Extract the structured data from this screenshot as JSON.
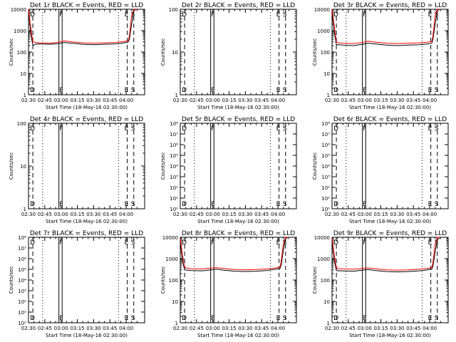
{
  "figure": {
    "shared": {
      "xlabel": "Start Time (18-May-16 02:30:00)",
      "ylabel": "Counts/sec",
      "x_ticks": [
        "02:30",
        "02:45",
        "03:00",
        "03:15",
        "03:30",
        "03:45",
        "04:00"
      ],
      "x_range_minutes": [
        0,
        107
      ],
      "event_color": "#000000",
      "lld_color": "#ff0000"
    }
  },
  "chart_data": [
    {
      "type": "line",
      "title": "Det 1r BLACK = Events, RED = LLD",
      "yscale": "log",
      "ylim": [
        1,
        10000
      ],
      "ytick_labels": [
        "1",
        "10",
        "100",
        "1000",
        "10000"
      ],
      "markers": [
        {
          "minute": 4,
          "style": "dashed",
          "label": "D"
        },
        {
          "minute": 13,
          "style": "dotted",
          "label": ""
        },
        {
          "minute": 28,
          "style": "solid",
          "label": ""
        },
        {
          "minute": 31,
          "style": "solid",
          "label": "F"
        },
        {
          "minute": 83,
          "style": "dotted",
          "label": ""
        },
        {
          "minute": 91,
          "style": "dashed",
          "label": "E"
        },
        {
          "minute": 97,
          "style": "dashed",
          "label": "S"
        }
      ],
      "series": [
        {
          "name": "BLACK = Events",
          "x": [
            0,
            2,
            4,
            6,
            10,
            20,
            28,
            33,
            40,
            50,
            60,
            70,
            80,
            88,
            92,
            93,
            95,
            97,
            100
          ],
          "y": [
            9000,
            800,
            200,
            230,
            240,
            230,
            250,
            280,
            260,
            230,
            220,
            230,
            240,
            270,
            300,
            400,
            2000,
            9000,
            10000
          ]
        },
        {
          "name": "RED = LLD",
          "x": [
            0,
            2,
            4,
            6,
            10,
            20,
            28,
            33,
            40,
            50,
            60,
            70,
            80,
            88,
            92,
            93,
            95,
            97,
            100
          ],
          "y": [
            10000,
            1500,
            300,
            280,
            270,
            260,
            290,
            330,
            300,
            270,
            260,
            270,
            280,
            310,
            340,
            600,
            5000,
            10000,
            10000
          ]
        }
      ]
    },
    {
      "type": "line",
      "title": "Det 2r BLACK = Events, RED = LLD",
      "yscale": "log",
      "ylim": [
        1,
        100
      ],
      "ytick_labels": [
        "1",
        "10",
        "100"
      ],
      "markers": [
        {
          "minute": 4,
          "style": "dashed",
          "label": "D"
        },
        {
          "minute": 13,
          "style": "dotted",
          "label": ""
        },
        {
          "minute": 28,
          "style": "solid",
          "label": ""
        },
        {
          "minute": 31,
          "style": "solid",
          "label": "F"
        },
        {
          "minute": 83,
          "style": "dotted",
          "label": ""
        },
        {
          "minute": 91,
          "style": "dashed",
          "label": "E"
        },
        {
          "minute": 97,
          "style": "dashed",
          "label": "S"
        }
      ],
      "series": []
    },
    {
      "type": "line",
      "title": "Det 3r BLACK = Events, RED = LLD",
      "yscale": "log",
      "ylim": [
        1,
        10000
      ],
      "ytick_labels": [
        "1",
        "10",
        "100",
        "1000",
        "10000"
      ],
      "markers": [
        {
          "minute": 4,
          "style": "dashed",
          "label": "D"
        },
        {
          "minute": 13,
          "style": "dotted",
          "label": ""
        },
        {
          "minute": 28,
          "style": "solid",
          "label": ""
        },
        {
          "minute": 31,
          "style": "solid",
          "label": "F"
        },
        {
          "minute": 83,
          "style": "dotted",
          "label": ""
        },
        {
          "minute": 91,
          "style": "dashed",
          "label": "E"
        },
        {
          "minute": 97,
          "style": "dashed",
          "label": "S"
        }
      ],
      "series": [
        {
          "name": "BLACK = Events",
          "x": [
            0,
            2,
            4,
            6,
            10,
            20,
            28,
            33,
            40,
            50,
            60,
            70,
            80,
            88,
            92,
            93,
            95,
            97,
            100
          ],
          "y": [
            8000,
            900,
            220,
            220,
            210,
            200,
            230,
            260,
            240,
            210,
            200,
            210,
            220,
            240,
            260,
            400,
            2000,
            9000,
            10000
          ]
        },
        {
          "name": "RED = LLD",
          "x": [
            0,
            2,
            4,
            6,
            10,
            20,
            28,
            33,
            40,
            50,
            60,
            70,
            80,
            88,
            92,
            93,
            95,
            97,
            100
          ],
          "y": [
            10000,
            1800,
            300,
            270,
            260,
            250,
            280,
            320,
            290,
            260,
            250,
            260,
            270,
            290,
            310,
            600,
            5000,
            10000,
            10000
          ]
        }
      ]
    },
    {
      "type": "line",
      "title": "Det 4r BLACK = Events, RED = LLD",
      "yscale": "log",
      "ylim": [
        1,
        100
      ],
      "ytick_labels": [
        "1",
        "10",
        "100"
      ],
      "markers": [
        {
          "minute": 4,
          "style": "dashed",
          "label": "D"
        },
        {
          "minute": 13,
          "style": "dotted",
          "label": ""
        },
        {
          "minute": 28,
          "style": "solid",
          "label": ""
        },
        {
          "minute": 31,
          "style": "solid",
          "label": "F"
        },
        {
          "minute": 83,
          "style": "dotted",
          "label": ""
        },
        {
          "minute": 91,
          "style": "dashed",
          "label": "E"
        },
        {
          "minute": 97,
          "style": "dashed",
          "label": "S"
        }
      ],
      "series": []
    },
    {
      "type": "line",
      "title": "Det 5r BLACK = Events, RED = LLD",
      "yscale": "log",
      "ylim": [
        1,
        100000000
      ],
      "ytick_labels": [
        "10⁰",
        "10¹",
        "10²",
        "10³",
        "10⁴",
        "10⁵",
        "10⁶",
        "10⁷",
        "10⁸"
      ],
      "markers": [
        {
          "minute": 4,
          "style": "dashed",
          "label": "D"
        },
        {
          "minute": 13,
          "style": "dotted",
          "label": ""
        },
        {
          "minute": 28,
          "style": "solid",
          "label": ""
        },
        {
          "minute": 31,
          "style": "solid",
          "label": "F"
        },
        {
          "minute": 83,
          "style": "dotted",
          "label": ""
        },
        {
          "minute": 91,
          "style": "dashed",
          "label": "E"
        },
        {
          "minute": 97,
          "style": "dashed",
          "label": "S"
        }
      ],
      "series": []
    },
    {
      "type": "line",
      "title": "Det 6r BLACK = Events, RED = LLD",
      "yscale": "log",
      "ylim": [
        1,
        100000000
      ],
      "ytick_labels": [
        "10⁰",
        "10¹",
        "10²",
        "10³",
        "10⁴",
        "10⁵",
        "10⁶",
        "10⁷",
        "10⁸"
      ],
      "markers": [
        {
          "minute": 4,
          "style": "dashed",
          "label": "D"
        },
        {
          "minute": 13,
          "style": "dotted",
          "label": ""
        },
        {
          "minute": 28,
          "style": "solid",
          "label": ""
        },
        {
          "minute": 31,
          "style": "solid",
          "label": "F"
        },
        {
          "minute": 83,
          "style": "dotted",
          "label": ""
        },
        {
          "minute": 91,
          "style": "dashed",
          "label": "E"
        },
        {
          "minute": 97,
          "style": "dashed",
          "label": "S"
        }
      ],
      "series": []
    },
    {
      "type": "line",
      "title": "Det 7r BLACK = Events, RED = LLD",
      "yscale": "log",
      "ylim": [
        1,
        100000000
      ],
      "ytick_labels": [
        "10⁰",
        "10¹",
        "10²",
        "10³",
        "10⁴",
        "10⁵",
        "10⁶",
        "10⁷",
        "10⁸"
      ],
      "markers": [
        {
          "minute": 4,
          "style": "dashed",
          "label": "D"
        },
        {
          "minute": 13,
          "style": "dotted",
          "label": ""
        },
        {
          "minute": 28,
          "style": "solid",
          "label": ""
        },
        {
          "minute": 31,
          "style": "solid",
          "label": "F"
        },
        {
          "minute": 83,
          "style": "dotted",
          "label": ""
        },
        {
          "minute": 91,
          "style": "dashed",
          "label": "E"
        },
        {
          "minute": 97,
          "style": "dashed",
          "label": "S"
        }
      ],
      "series": []
    },
    {
      "type": "line",
      "title": "Det 8r BLACK = Events, RED = LLD",
      "yscale": "log",
      "ylim": [
        1,
        10000
      ],
      "ytick_labels": [
        "1",
        "10",
        "100",
        "1000",
        "10000"
      ],
      "markers": [
        {
          "minute": 4,
          "style": "dashed",
          "label": "D"
        },
        {
          "minute": 13,
          "style": "dotted",
          "label": ""
        },
        {
          "minute": 28,
          "style": "solid",
          "label": ""
        },
        {
          "minute": 31,
          "style": "solid",
          "label": "F"
        },
        {
          "minute": 83,
          "style": "dotted",
          "label": ""
        },
        {
          "minute": 91,
          "style": "dashed",
          "label": "E"
        },
        {
          "minute": 97,
          "style": "dashed",
          "label": "S"
        }
      ],
      "series": [
        {
          "name": "BLACK = Events",
          "x": [
            0,
            2,
            4,
            6,
            10,
            20,
            28,
            33,
            40,
            50,
            60,
            70,
            80,
            88,
            92,
            93,
            95,
            97,
            100
          ],
          "y": [
            7000,
            800,
            300,
            290,
            280,
            270,
            300,
            320,
            290,
            260,
            250,
            260,
            280,
            320,
            350,
            500,
            2500,
            9000,
            10000
          ]
        },
        {
          "name": "RED = LLD",
          "x": [
            0,
            2,
            4,
            6,
            10,
            20,
            28,
            33,
            40,
            50,
            60,
            70,
            80,
            88,
            92,
            93,
            95,
            97,
            100
          ],
          "y": [
            9000,
            1500,
            400,
            360,
            340,
            330,
            360,
            380,
            350,
            310,
            300,
            310,
            330,
            370,
            400,
            800,
            5000,
            10000,
            10000
          ]
        }
      ]
    },
    {
      "type": "line",
      "title": "Det 9r BLACK = Events, RED = LLD",
      "yscale": "log",
      "ylim": [
        1,
        10000
      ],
      "ytick_labels": [
        "1",
        "10",
        "100",
        "1000",
        "10000"
      ],
      "markers": [
        {
          "minute": 4,
          "style": "dashed",
          "label": "D"
        },
        {
          "minute": 13,
          "style": "dotted",
          "label": ""
        },
        {
          "minute": 28,
          "style": "solid",
          "label": ""
        },
        {
          "minute": 31,
          "style": "solid",
          "label": "F"
        },
        {
          "minute": 83,
          "style": "dotted",
          "label": ""
        },
        {
          "minute": 91,
          "style": "dashed",
          "label": "E"
        },
        {
          "minute": 97,
          "style": "dashed",
          "label": "S"
        }
      ],
      "series": [
        {
          "name": "BLACK = Events",
          "x": [
            0,
            2,
            4,
            6,
            10,
            20,
            28,
            33,
            40,
            50,
            60,
            70,
            80,
            88,
            92,
            93,
            95,
            97,
            100
          ],
          "y": [
            7000,
            900,
            280,
            270,
            270,
            260,
            290,
            310,
            280,
            250,
            240,
            250,
            270,
            300,
            330,
            450,
            2000,
            8000,
            10000
          ]
        },
        {
          "name": "RED = LLD",
          "x": [
            0,
            2,
            4,
            6,
            10,
            20,
            28,
            33,
            40,
            50,
            60,
            70,
            80,
            88,
            92,
            93,
            95,
            97,
            100
          ],
          "y": [
            9000,
            1600,
            380,
            340,
            330,
            320,
            350,
            370,
            340,
            300,
            290,
            300,
            320,
            350,
            380,
            700,
            4500,
            10000,
            10000
          ]
        }
      ]
    }
  ]
}
